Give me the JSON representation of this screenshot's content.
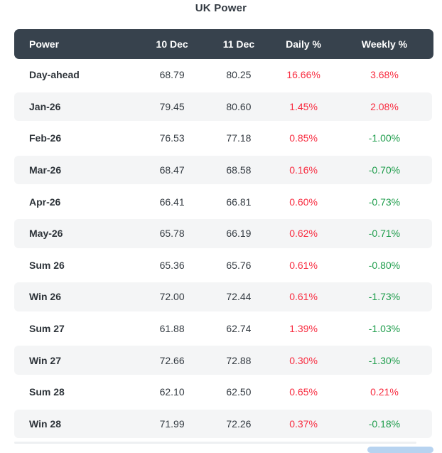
{
  "title": "UK Power",
  "table": {
    "columns": [
      "Power",
      "10 Dec",
      "11 Dec",
      "Daily %",
      "Weekly %"
    ],
    "rows": [
      {
        "label": "Day-ahead",
        "dec10": "68.79",
        "dec11": "80.25",
        "daily_pct": "16.66%",
        "weekly_pct": "3.68%"
      },
      {
        "label": "Jan-26",
        "dec10": "79.45",
        "dec11": "80.60",
        "daily_pct": "1.45%",
        "weekly_pct": "2.08%"
      },
      {
        "label": "Feb-26",
        "dec10": "76.53",
        "dec11": "77.18",
        "daily_pct": "0.85%",
        "weekly_pct": "-1.00%"
      },
      {
        "label": "Mar-26",
        "dec10": "68.47",
        "dec11": "68.58",
        "daily_pct": "0.16%",
        "weekly_pct": "-0.70%"
      },
      {
        "label": "Apr-26",
        "dec10": "66.41",
        "dec11": "66.81",
        "daily_pct": "0.60%",
        "weekly_pct": "-0.73%"
      },
      {
        "label": "May-26",
        "dec10": "65.78",
        "dec11": "66.19",
        "daily_pct": "0.62%",
        "weekly_pct": "-0.71%"
      },
      {
        "label": "Sum 26",
        "dec10": "65.36",
        "dec11": "65.76",
        "daily_pct": "0.61%",
        "weekly_pct": "-0.80%"
      },
      {
        "label": "Win 26",
        "dec10": "72.00",
        "dec11": "72.44",
        "daily_pct": "0.61%",
        "weekly_pct": "-1.73%"
      },
      {
        "label": "Sum 27",
        "dec10": "61.88",
        "dec11": "62.74",
        "daily_pct": "1.39%",
        "weekly_pct": "-1.03%"
      },
      {
        "label": "Win 27",
        "dec10": "72.66",
        "dec11": "72.88",
        "daily_pct": "0.30%",
        "weekly_pct": "-1.30%"
      },
      {
        "label": "Sum 28",
        "dec10": "62.10",
        "dec11": "62.50",
        "daily_pct": "0.65%",
        "weekly_pct": "0.21%"
      },
      {
        "label": "Win 28",
        "dec10": "71.99",
        "dec11": "72.26",
        "daily_pct": "0.37%",
        "weekly_pct": "-0.18%"
      }
    ]
  },
  "colors": {
    "title": "#333a42",
    "header_bg": "#37424d",
    "stripe": "#f4f5f6",
    "positive_red": "#f82d41",
    "negative_green": "#1f9d4c",
    "scroll_thumb_blue": "#b7d3f0"
  }
}
